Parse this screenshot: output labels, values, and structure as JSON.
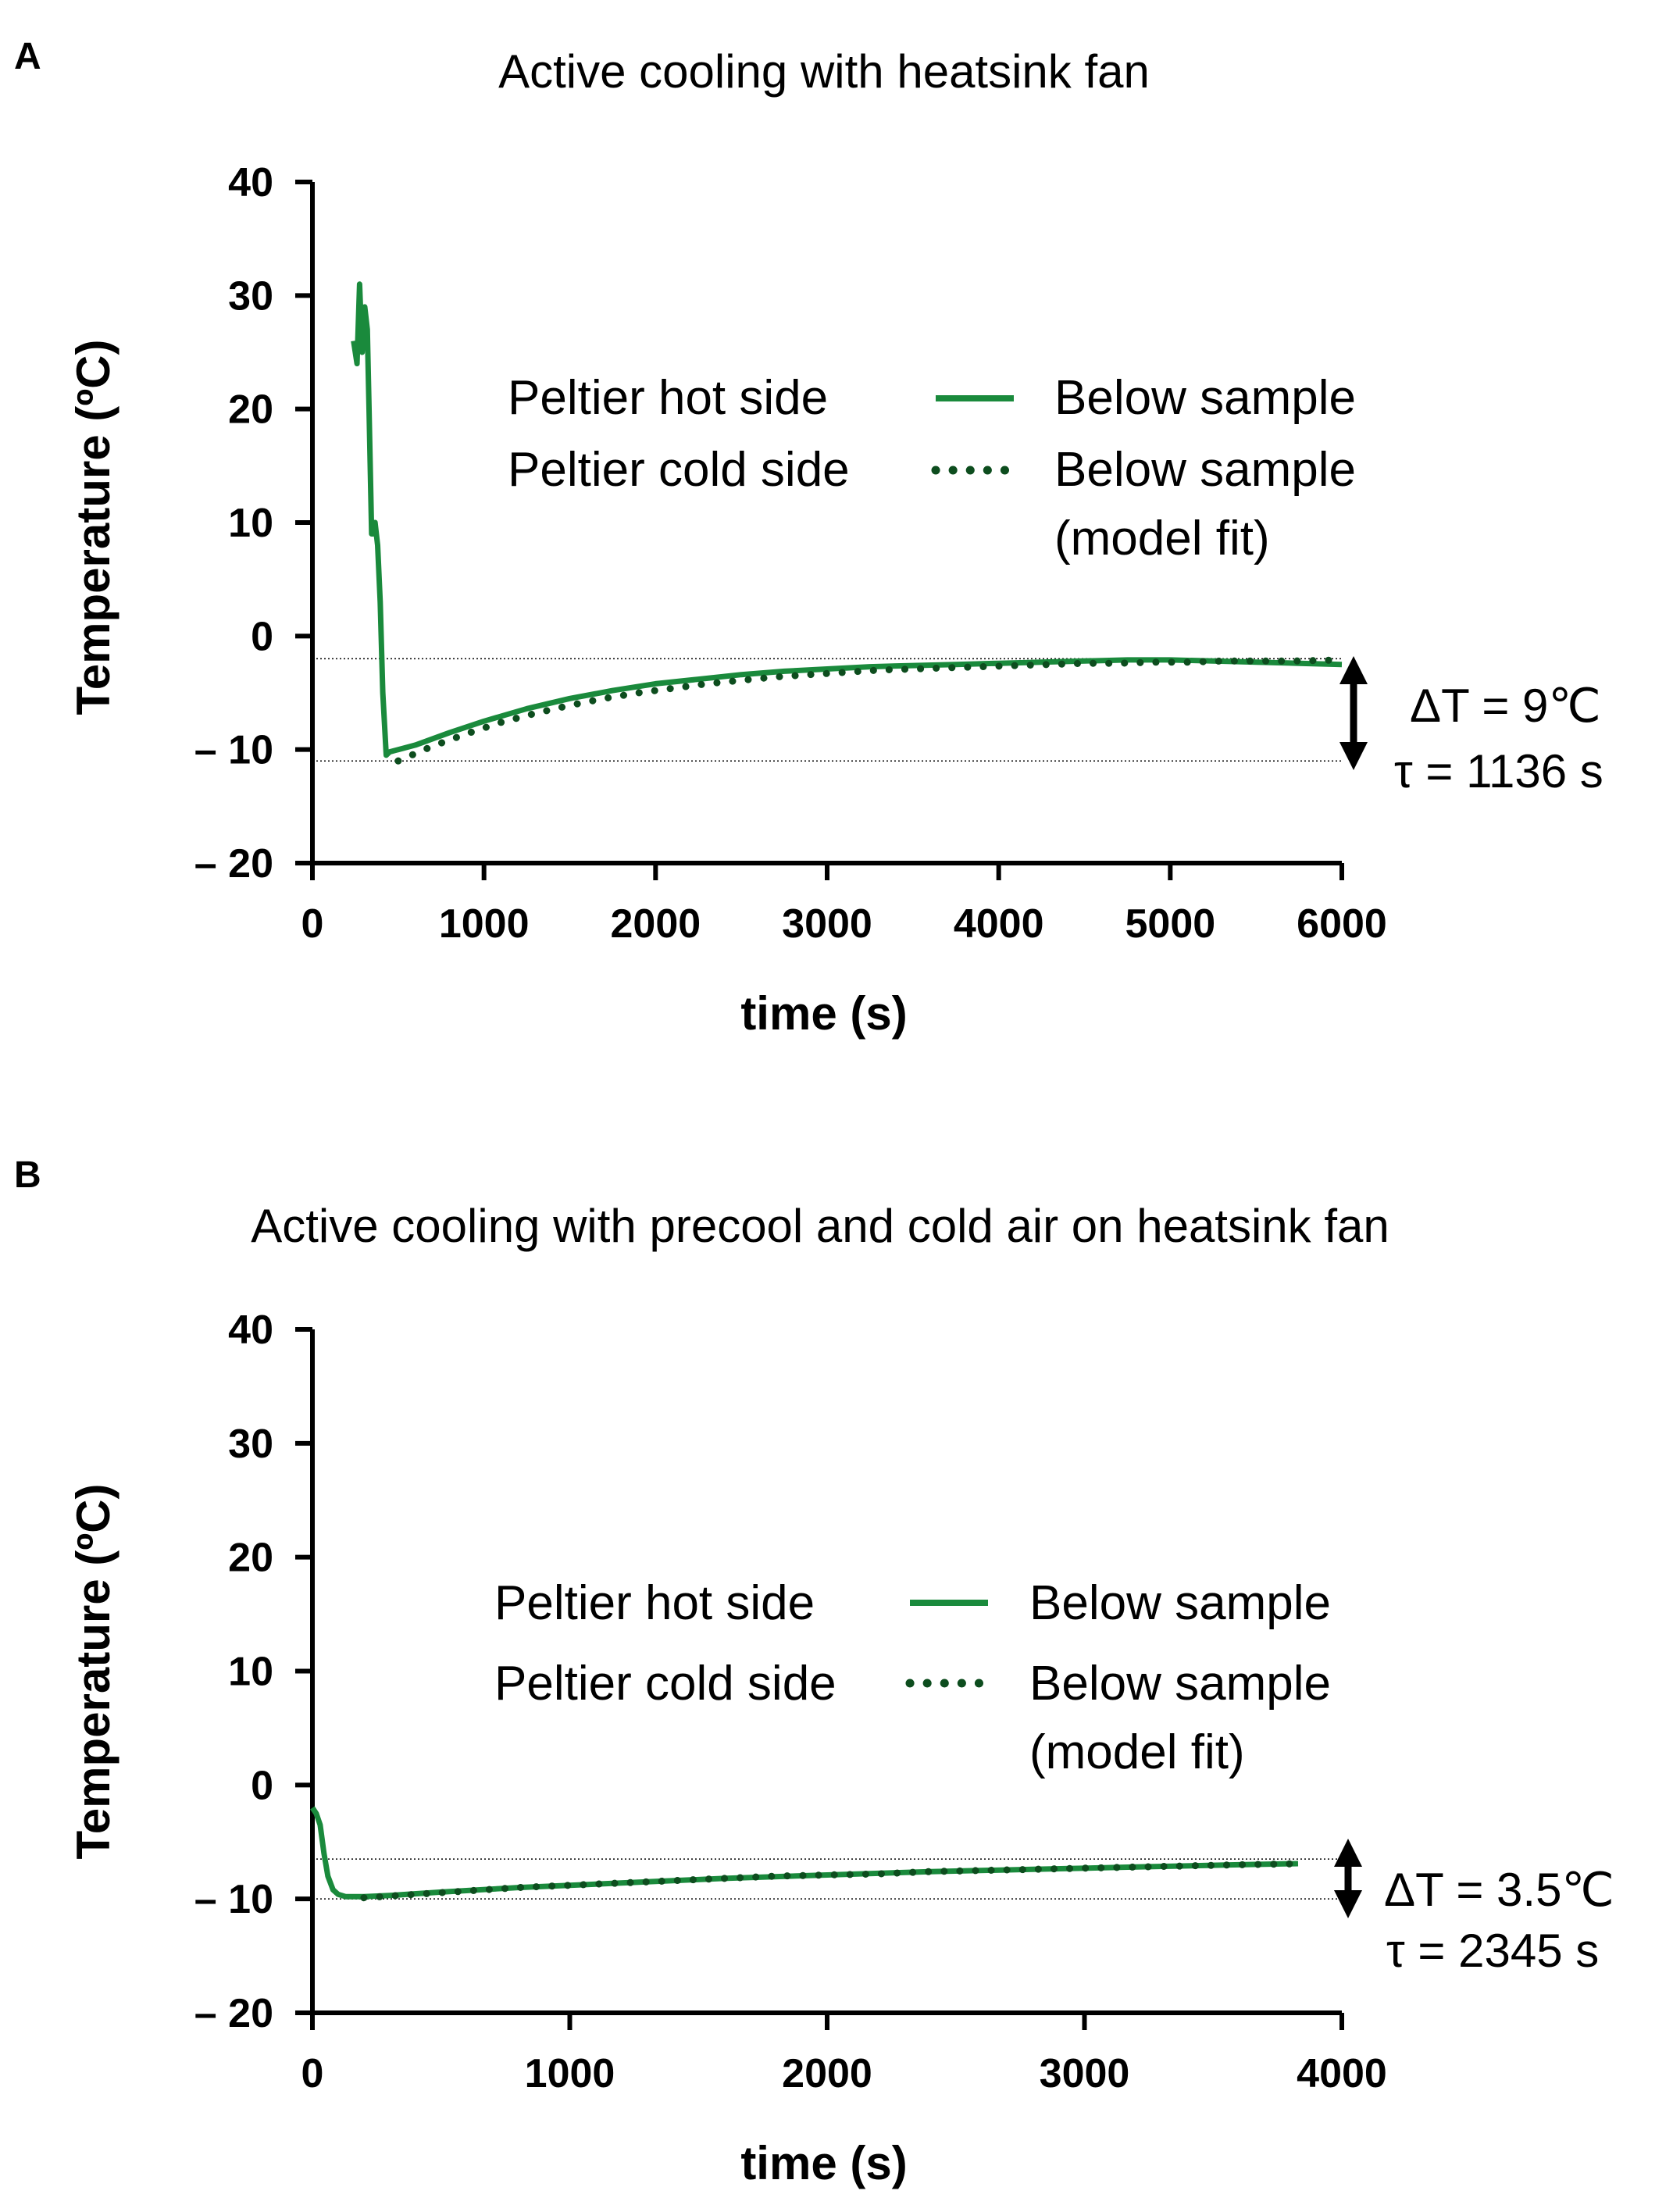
{
  "colors": {
    "solid_green": "#1a8a3c",
    "dotted_green": "#0d4d1e",
    "axis": "#000000"
  },
  "chart_data": [
    {
      "panel": "A",
      "type": "line",
      "title": "Active cooling with heatsink fan",
      "xlabel": "time (s)",
      "ylabel": "Temperature (ºC)",
      "xlim": [
        0,
        6000
      ],
      "ylim": [
        -20,
        40
      ],
      "xticks": [
        0,
        1000,
        2000,
        3000,
        4000,
        5000,
        6000
      ],
      "xtick_labels": [
        "0",
        "1000",
        "2000",
        "3000",
        "4000",
        "5000",
        "6000"
      ],
      "yticks": [
        40,
        30,
        20,
        10,
        0,
        -10,
        -20
      ],
      "ytick_labels": [
        "40",
        "30",
        "20",
        "10",
        "0",
        "– 10",
        "– 20"
      ],
      "legend": {
        "position": "center",
        "rows": [
          {
            "left": "Peltier hot side",
            "right": "Below sample"
          },
          {
            "left": "Peltier cold side",
            "right": "Below sample",
            "right2": "(model fit)"
          }
        ]
      },
      "series": [
        {
          "name": "Below sample",
          "style": "solid",
          "x": [
            240,
            260,
            275,
            290,
            305,
            320,
            330,
            345,
            355,
            365,
            380,
            395,
            410,
            430,
            450,
            500,
            600,
            800,
            1000,
            1250,
            1500,
            1750,
            2000,
            2250,
            2500,
            2750,
            3000,
            3250,
            3500,
            3750,
            4000,
            4250,
            4500,
            4750,
            5000,
            5250,
            5500,
            5750,
            6000
          ],
          "values": [
            26,
            24,
            31,
            25,
            29,
            27,
            20,
            9,
            9,
            10,
            8,
            3,
            -5,
            -10.5,
            -10.2,
            -10,
            -9.6,
            -8.5,
            -7.5,
            -6.4,
            -5.5,
            -4.8,
            -4.2,
            -3.8,
            -3.4,
            -3.1,
            -2.9,
            -2.7,
            -2.6,
            -2.5,
            -2.4,
            -2.3,
            -2.2,
            -2.1,
            -2.1,
            -2.2,
            -2.3,
            -2.4,
            -2.5
          ]
        },
        {
          "name": "Below sample (model fit)",
          "style": "dotted",
          "x": [
            500,
            700,
            900,
            1100,
            1300,
            1500,
            1700,
            1900,
            2100,
            2300,
            2500,
            2700,
            2900,
            3100,
            3300,
            3500,
            3700,
            3900,
            4100,
            4300,
            4500,
            4700,
            4900,
            5100,
            5300,
            5500,
            5700,
            6000
          ],
          "values": [
            -11,
            -9.7,
            -8.6,
            -7.6,
            -6.8,
            -6.1,
            -5.5,
            -5.0,
            -4.6,
            -4.2,
            -3.9,
            -3.6,
            -3.4,
            -3.2,
            -3.0,
            -2.9,
            -2.8,
            -2.7,
            -2.6,
            -2.5,
            -2.4,
            -2.4,
            -2.3,
            -2.3,
            -2.2,
            -2.2,
            -2.2,
            -2.1
          ]
        }
      ],
      "hlines": [
        -2,
        -11
      ],
      "annotation": {
        "delta": "ΔT = 9℃",
        "tau": "τ = 1136 s",
        "delta_value": 9,
        "tau_value": 1136
      }
    },
    {
      "panel": "B",
      "type": "line",
      "title": "Active cooling with precool and cold air on heatsink fan",
      "xlabel": "time (s)",
      "ylabel": "Temperature (ºC)",
      "xlim": [
        0,
        4000
      ],
      "ylim": [
        -20,
        40
      ],
      "xticks": [
        0,
        1000,
        2000,
        3000,
        4000
      ],
      "xtick_labels": [
        "0",
        "1000",
        "2000",
        "3000",
        "4000"
      ],
      "yticks": [
        40,
        30,
        20,
        10,
        0,
        -10,
        -20
      ],
      "ytick_labels": [
        "40",
        "30",
        "20",
        "10",
        "0",
        "– 10",
        "– 20"
      ],
      "legend": {
        "position": "center",
        "rows": [
          {
            "left": "Peltier hot side",
            "right": "Below sample"
          },
          {
            "left": "Peltier cold side",
            "right": "Below sample",
            "right2": "(model fit)"
          }
        ]
      },
      "series": [
        {
          "name": "Below sample",
          "style": "solid",
          "x": [
            0,
            15,
            30,
            45,
            60,
            80,
            100,
            130,
            160,
            200,
            300,
            500,
            800,
            1000,
            1300,
            1600,
            2000,
            2400,
            2800,
            3200,
            3600,
            3830
          ],
          "values": [
            -2,
            -2.5,
            -3.5,
            -6,
            -8,
            -9.2,
            -9.6,
            -9.8,
            -9.8,
            -9.8,
            -9.7,
            -9.4,
            -9.0,
            -8.8,
            -8.5,
            -8.2,
            -7.9,
            -7.6,
            -7.4,
            -7.2,
            -7.0,
            -6.9
          ]
        },
        {
          "name": "Below sample (model fit)",
          "style": "dotted",
          "x": [
            200,
            400,
            600,
            800,
            1000,
            1200,
            1400,
            1600,
            1800,
            2000,
            2200,
            2400,
            2600,
            2800,
            3000,
            3200,
            3400,
            3600,
            3830
          ],
          "values": [
            -9.9,
            -9.6,
            -9.3,
            -9.0,
            -8.8,
            -8.6,
            -8.4,
            -8.2,
            -8.0,
            -7.9,
            -7.8,
            -7.6,
            -7.5,
            -7.4,
            -7.3,
            -7.2,
            -7.1,
            -7.0,
            -6.9
          ]
        }
      ],
      "hlines": [
        -6.5,
        -10
      ],
      "annotation": {
        "delta": "ΔT = 3.5℃",
        "tau": "τ = 2345 s",
        "delta_value": 3.5,
        "tau_value": 2345
      }
    }
  ]
}
